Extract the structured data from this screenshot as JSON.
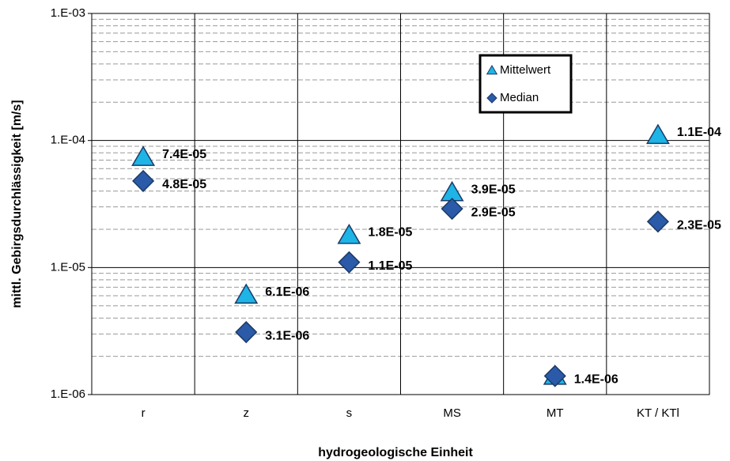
{
  "chart_data": {
    "type": "scatter",
    "xlabel": "hydrogeologische Einheit",
    "ylabel": "mittl. Gebirgsdurchlässigkeit [m/s]",
    "categories": [
      "r",
      "z",
      "s",
      "MS",
      "MT",
      "KT / KTl"
    ],
    "series": [
      {
        "name": "Mittelwert",
        "marker": "triangle",
        "color": "#1eb4e6",
        "values": [
          7.4e-05,
          6.1e-06,
          1.8e-05,
          3.9e-05,
          1.4e-06,
          0.00011
        ],
        "value_labels": [
          "7.4E-05",
          "6.1E-06",
          "1.8E-05",
          "3.9E-05",
          null,
          "1.1E-04"
        ]
      },
      {
        "name": "Median",
        "marker": "diamond",
        "color": "#2a5aa8",
        "values": [
          4.8e-05,
          3.1e-06,
          1.1e-05,
          2.9e-05,
          1.4e-06,
          2.3e-05
        ],
        "value_labels": [
          "4.8E-05",
          "3.1E-06",
          "1.1E-05",
          "2.9E-05",
          "1.4E-06",
          "2.3E-05"
        ]
      }
    ],
    "ylim": [
      1e-06,
      0.001
    ],
    "log_y": true,
    "yticks": [
      {
        "value": 1e-06,
        "label": "1.E-06"
      },
      {
        "value": 1e-05,
        "label": "1.E-05"
      },
      {
        "value": 0.0001,
        "label": "1.E-04"
      },
      {
        "value": 0.001,
        "label": "1.E-03"
      }
    ],
    "yminorticks": [
      2e-06,
      3e-06,
      4e-06,
      5e-06,
      6e-06,
      7e-06,
      8e-06,
      9e-06,
      2e-05,
      3e-05,
      4e-05,
      5e-05,
      6e-05,
      7e-05,
      8e-05,
      9e-05,
      0.0002,
      0.0003,
      0.0004,
      0.0005,
      0.0006,
      0.0007,
      0.0008,
      0.0009
    ],
    "grid": true
  }
}
